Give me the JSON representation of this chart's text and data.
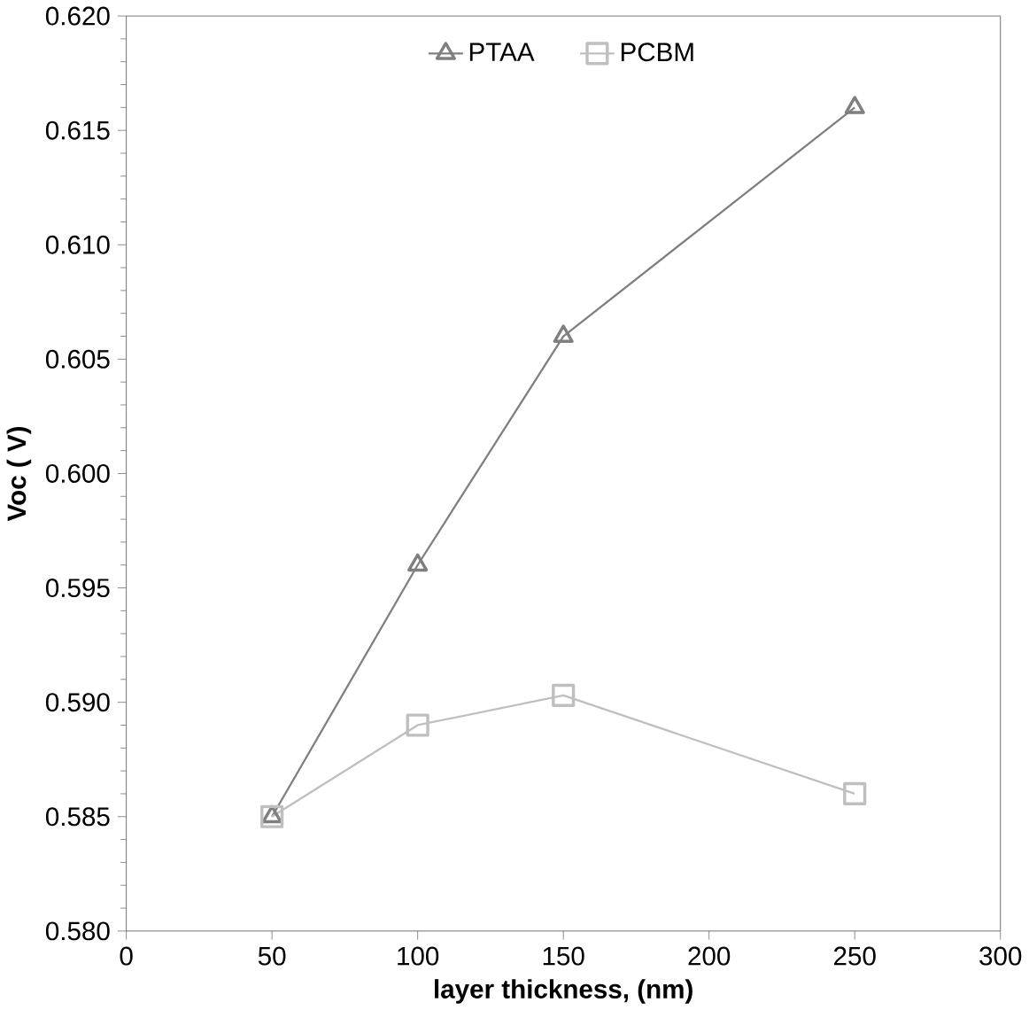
{
  "chart_data": {
    "type": "line",
    "xlabel": "layer thickness, (nm)",
    "ylabel": "Voc ( V)",
    "x": [
      50,
      100,
      150,
      250
    ],
    "series": [
      {
        "name": "PTAA",
        "color": "#7f7f7f",
        "marker": "triangle",
        "values": [
          0.585,
          0.596,
          0.606,
          0.616
        ]
      },
      {
        "name": "PCBM",
        "color": "#bfbfbf",
        "marker": "square",
        "values": [
          0.585,
          0.589,
          0.5903,
          0.586
        ]
      }
    ],
    "xlim": [
      0,
      300
    ],
    "xticks": [
      0,
      50,
      100,
      150,
      200,
      250,
      300
    ],
    "ylim": [
      0.58,
      0.62
    ],
    "yticks": [
      {
        "value": 0.58,
        "label": "0.580"
      },
      {
        "value": 0.585,
        "label": "0.585"
      },
      {
        "value": 0.59,
        "label": "0.590"
      },
      {
        "value": 0.595,
        "label": "0.595"
      },
      {
        "value": 0.6,
        "label": "0.600"
      },
      {
        "value": 0.605,
        "label": "0.605"
      },
      {
        "value": 0.61,
        "label": "0.610"
      },
      {
        "value": 0.615,
        "label": "0.615"
      },
      {
        "value": 0.62,
        "label": "0.620"
      }
    ],
    "legend": "top",
    "line_style": "solid"
  }
}
